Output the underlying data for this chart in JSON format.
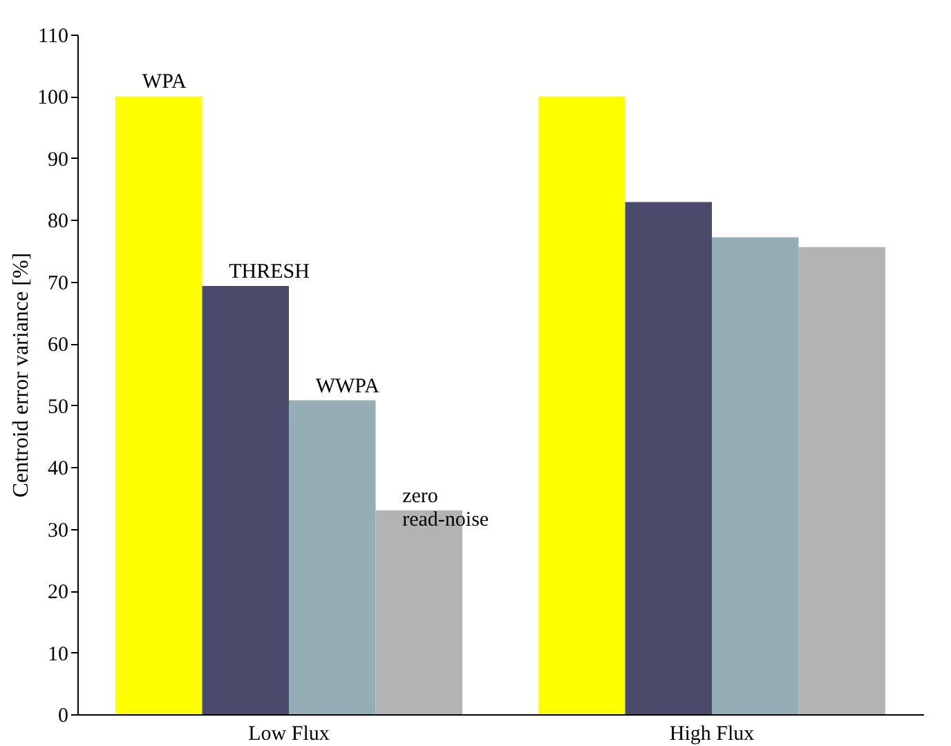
{
  "chart_data": {
    "type": "bar",
    "ylabel": "Centroid error variance [%]",
    "categories": [
      "Low Flux",
      "High Flux"
    ],
    "series": [
      {
        "name": "WPA",
        "color": "#ffff00",
        "values": [
          100,
          100
        ]
      },
      {
        "name": "THRESH",
        "color": "#4a4a6a",
        "values": [
          69.3,
          82.9
        ]
      },
      {
        "name": "WWPA",
        "color": "#95adb5",
        "values": [
          50.8,
          77.2
        ]
      },
      {
        "name": "zero read-noise",
        "color": "#b3b3b3",
        "values": [
          33,
          75.6
        ]
      }
    ],
    "ylim": [
      0,
      110
    ],
    "yticks": [
      0,
      10,
      20,
      30,
      40,
      50,
      60,
      70,
      80,
      90,
      100,
      110
    ],
    "grid": false,
    "legend": false
  }
}
